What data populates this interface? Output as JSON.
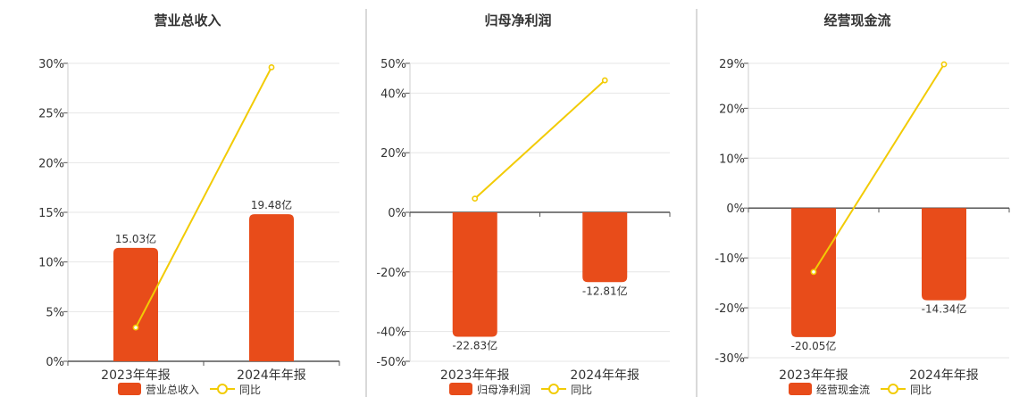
{
  "colors": {
    "bar": "#e84c1a",
    "line": "#f2cb05",
    "axis": "#555555",
    "grid": "#e6e6e6",
    "divider": "#b3b3b3",
    "text": "#333333"
  },
  "chart_data": [
    {
      "type": "bar",
      "title": "营业总收入",
      "categories": [
        "2023年年报",
        "2024年年报"
      ],
      "series": [
        {
          "name": "营业总收入",
          "type": "bar",
          "values": [
            15.03,
            19.48
          ],
          "labels": [
            "15.03亿",
            "19.48亿"
          ]
        },
        {
          "name": "同比",
          "type": "line",
          "values": [
            3.4,
            29.6
          ]
        }
      ],
      "ylim": [
        0,
        30
      ],
      "yticks": [
        0,
        5,
        10,
        15,
        20,
        25,
        30
      ],
      "ytick_labels": [
        "0%",
        "5%",
        "10%",
        "15%",
        "20%",
        "25%",
        "30%"
      ],
      "bar_scale": 0.76,
      "grid": true,
      "legend": "bottom"
    },
    {
      "type": "bar",
      "title": "归母净利润",
      "categories": [
        "2023年年报",
        "2024年年报"
      ],
      "series": [
        {
          "name": "归母净利润",
          "type": "bar",
          "values": [
            -22.83,
            -12.81
          ],
          "labels": [
            "-22.83亿",
            "-12.81亿"
          ]
        },
        {
          "name": "同比",
          "type": "line",
          "values": [
            4.6,
            44.3
          ]
        }
      ],
      "ylim": [
        -50,
        50
      ],
      "yticks": [
        -50,
        -40,
        -20,
        0,
        20,
        40,
        50
      ],
      "ytick_labels": [
        "-50%",
        "-40%",
        "-20%",
        "0%",
        "20%",
        "40%",
        "50%"
      ],
      "bar_scale": 1.83,
      "grid": true,
      "legend": "bottom"
    },
    {
      "type": "bar",
      "title": "经营现金流",
      "categories": [
        "2023年年报",
        "2024年年报"
      ],
      "series": [
        {
          "name": "经营现金流",
          "type": "bar",
          "values": [
            -20.05,
            -14.34
          ],
          "labels": [
            "-20.05亿",
            "-14.34亿"
          ]
        },
        {
          "name": "同比",
          "type": "line",
          "values": [
            -12.8,
            28.8
          ]
        }
      ],
      "ylim": [
        -30,
        29
      ],
      "yticks": [
        -30,
        -20,
        -10,
        0,
        10,
        20,
        29
      ],
      "ytick_labels": [
        "-30%",
        "-20%",
        "-10%",
        "0%",
        "10%",
        "20%",
        "29%"
      ],
      "bar_scale": 1.29,
      "grid": true,
      "legend": "bottom"
    }
  ]
}
